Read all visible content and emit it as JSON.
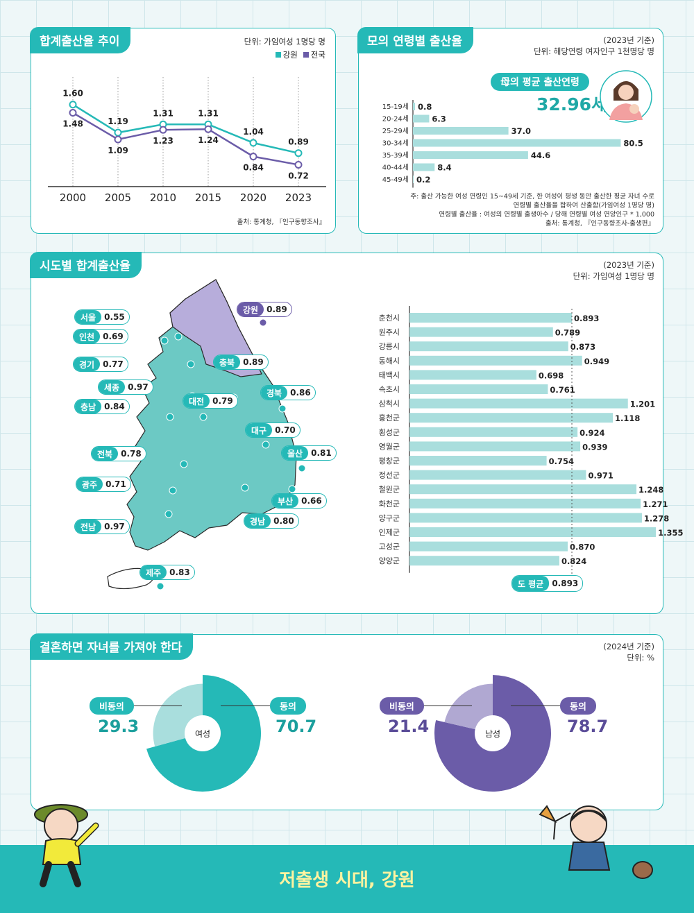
{
  "trend": {
    "title": "합계출산율 추이",
    "unit": "단위: 가임여성 1명당 명",
    "legend": [
      {
        "name": "강원",
        "color": "#25b9b7"
      },
      {
        "name": "전국",
        "color": "#6b5ca8"
      }
    ],
    "source": "출처: 통계청, 『인구동향조사』"
  },
  "age": {
    "title": "모의 연령별 출산율",
    "year_note": "(2023년 기준)",
    "unit": "단위: 해당연령 여자인구 1천명당 명",
    "avg_label": "母의 평균 출산연령",
    "avg_value": "32.96세",
    "notes": [
      "주: 출산 가능한 여성 연령인 15~49세 기준, 한 여성이 평생 동안 출산한 평균 자녀 수로",
      "연령별 출산율을 합하여 산출함(가임여성 1명당 명)",
      "연령별 출산율 : 여성의 연령별 출생아수 / 당해 연령별 여성 연앙인구 * 1,000",
      "출처: 통계청, 『인구동향조사-출생편』"
    ]
  },
  "region": {
    "title": "시도별 합계출산율",
    "year_note": "(2023년 기준)",
    "unit": "단위: 가임여성 1명당 명",
    "map_labels": [
      {
        "name": "서울",
        "value": "0.55"
      },
      {
        "name": "인천",
        "value": "0.69"
      },
      {
        "name": "경기",
        "value": "0.77"
      },
      {
        "name": "세종",
        "value": "0.97"
      },
      {
        "name": "충남",
        "value": "0.84"
      },
      {
        "name": "전북",
        "value": "0.78"
      },
      {
        "name": "광주",
        "value": "0.71"
      },
      {
        "name": "전남",
        "value": "0.97"
      },
      {
        "name": "제주",
        "value": "0.83"
      },
      {
        "name": "강원",
        "value": "0.89"
      },
      {
        "name": "충북",
        "value": "0.89"
      },
      {
        "name": "대전",
        "value": "0.79"
      },
      {
        "name": "경북",
        "value": "0.86"
      },
      {
        "name": "대구",
        "value": "0.70"
      },
      {
        "name": "울산",
        "value": "0.81"
      },
      {
        "name": "부산",
        "value": "0.66"
      },
      {
        "name": "경남",
        "value": "0.80"
      }
    ],
    "avg_label": "도 평균",
    "avg_value": "0.893"
  },
  "marriage": {
    "title": "결혼하면 자녀를 가져야 한다",
    "year_note": "(2024년 기준)",
    "unit": "단위: %",
    "female": {
      "center": "여성",
      "disagree_label": "비동의",
      "disagree": "29.3",
      "agree_label": "동의",
      "agree": "70.7"
    },
    "male": {
      "center": "남성",
      "disagree_label": "비동의",
      "disagree": "21.4",
      "agree_label": "동의",
      "agree": "78.7"
    }
  },
  "footer": {
    "title": "저출생 시대, 강원"
  },
  "colors": {
    "teal": "#25b9b7",
    "teal_light": "#a9dedd",
    "purple": "#6b5ca8",
    "purple_light": "#b0a8d2"
  },
  "chart_data": [
    {
      "type": "line",
      "x": [
        "2000",
        "2005",
        "2010",
        "2015",
        "2020",
        "2023"
      ],
      "series": [
        {
          "name": "강원",
          "values": [
            1.6,
            1.19,
            1.31,
            1.31,
            1.04,
            0.89
          ]
        },
        {
          "name": "전국",
          "values": [
            1.48,
            1.09,
            1.23,
            1.24,
            0.84,
            0.72
          ]
        }
      ],
      "ylim": [
        0.4,
        1.8
      ]
    },
    {
      "type": "bar",
      "orientation": "horizontal",
      "categories": [
        "15-19세",
        "20-24세",
        "25-29세",
        "30-34세",
        "35-39세",
        "40-44세",
        "45-49세"
      ],
      "values": [
        0.8,
        6.3,
        37.0,
        80.5,
        44.6,
        8.4,
        0.2
      ],
      "value_labels": [
        "0.8",
        "6.3",
        "37.0",
        "80.5",
        "44.6",
        "8.4",
        "0.2"
      ],
      "xlim": [
        0,
        82
      ]
    },
    {
      "type": "bar",
      "orientation": "horizontal",
      "categories": [
        "춘천시",
        "원주시",
        "강릉시",
        "동해시",
        "태백시",
        "속초시",
        "삼척시",
        "홍천군",
        "횡성군",
        "영월군",
        "평창군",
        "정선군",
        "철원군",
        "화천군",
        "양구군",
        "인제군",
        "고성군",
        "양양군"
      ],
      "values": [
        0.893,
        0.789,
        0.873,
        0.949,
        0.698,
        0.761,
        1.201,
        1.118,
        0.924,
        0.939,
        0.754,
        0.971,
        1.248,
        1.271,
        1.278,
        1.355,
        0.87,
        0.824
      ],
      "value_labels": [
        "0.893",
        "0.789",
        "0.873",
        "0.949",
        "0.698",
        "0.761",
        "1.201",
        "1.118",
        "0.924",
        "0.939",
        "0.754",
        "0.971",
        "1.248",
        "1.271",
        "1.278",
        "1.355",
        "0.870",
        "0.824"
      ],
      "reference_line": 0.893,
      "xlim": [
        0,
        1.45
      ]
    },
    {
      "type": "pie",
      "categories": [
        "동의",
        "비동의"
      ],
      "values": [
        70.7,
        29.3
      ],
      "center": "여성"
    },
    {
      "type": "pie",
      "categories": [
        "동의",
        "비동의"
      ],
      "values": [
        78.7,
        21.4
      ],
      "center": "남성"
    }
  ]
}
